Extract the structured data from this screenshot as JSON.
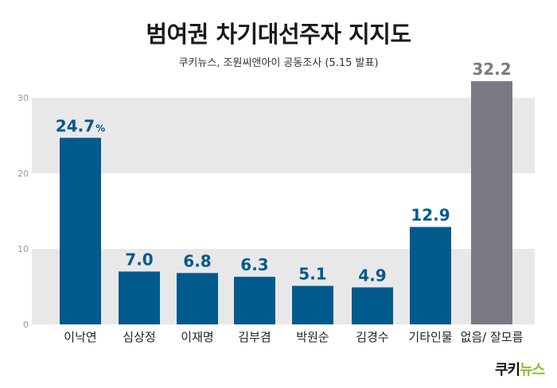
{
  "header": {
    "title": "범여권 차기대선주자 지지도",
    "subtitle": "쿠키뉴스, 조원씨앤아이 공동조사 (5.15 발표)"
  },
  "brand": {
    "part1": "쿠키",
    "part2": "뉴스"
  },
  "colors": {
    "primary_bar": "#005a8c",
    "other_bar": "#7a7a84",
    "band": "#e8e8e8"
  },
  "chart_data": {
    "type": "bar",
    "title": "범여권 차기대선주자 지지도",
    "subtitle": "쿠키뉴스, 조원씨앤아이 공동조사 (5.15 발표)",
    "categories": [
      "이낙연",
      "심상정",
      "이재명",
      "김부겸",
      "박원순",
      "김경수",
      "기타인물",
      "없음/ 잘모름"
    ],
    "values": [
      24.7,
      7.0,
      6.8,
      6.3,
      5.1,
      4.9,
      12.9,
      32.2
    ],
    "value_labels": [
      "24.7",
      "7.0",
      "6.8",
      "6.3",
      "5.1",
      "4.9",
      "12.9",
      "32.2"
    ],
    "first_value_unit": "%",
    "ylim": [
      0,
      30
    ],
    "yticks": [
      0,
      10,
      20,
      30
    ],
    "grid": "alternating horizontal bands",
    "legend": "none"
  }
}
